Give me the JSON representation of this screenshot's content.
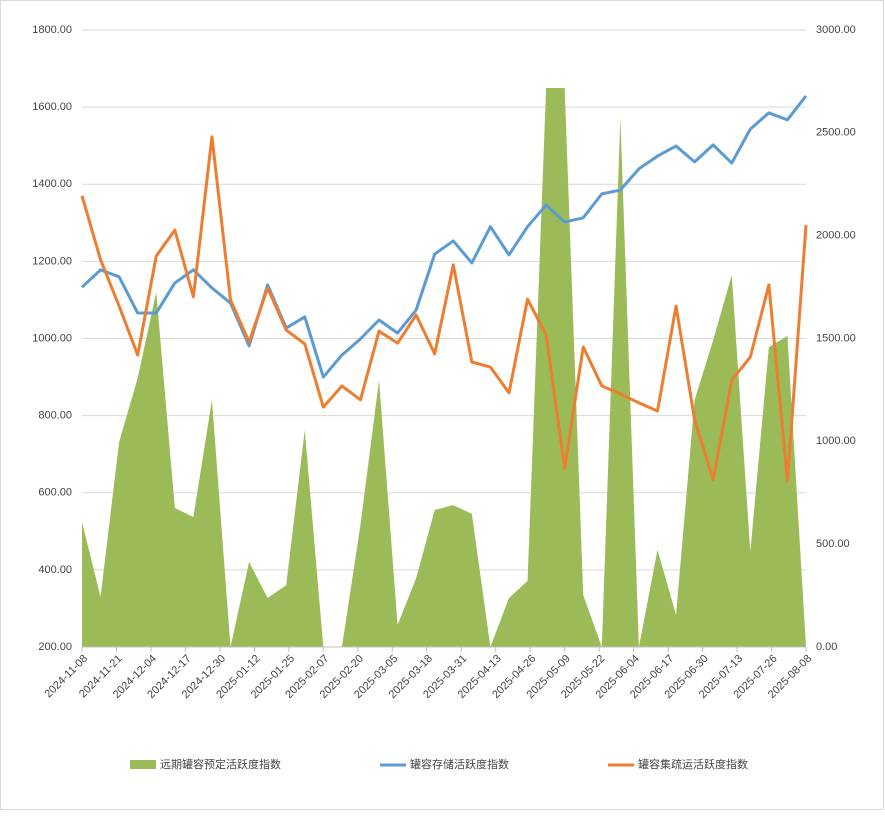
{
  "chart_data": {
    "type": "combo",
    "x": [
      "2024-11-08",
      "2024-11-15",
      "2024-11-22",
      "2024-11-29",
      "2024-12-06",
      "2024-12-13",
      "2024-12-20",
      "2024-12-27",
      "2025-01-03",
      "2025-01-10",
      "2025-01-17",
      "2025-01-24",
      "2025-01-31",
      "2025-02-07",
      "2025-02-14",
      "2025-02-21",
      "2025-02-28",
      "2025-03-07",
      "2025-03-14",
      "2025-03-21",
      "2025-03-28",
      "2025-04-04",
      "2025-04-11",
      "2025-04-18",
      "2025-04-25",
      "2025-05-02",
      "2025-05-09",
      "2025-05-16",
      "2025-05-23",
      "2025-05-30",
      "2025-06-06",
      "2025-06-13",
      "2025-06-20",
      "2025-06-27",
      "2025-07-04",
      "2025-07-11",
      "2025-07-18",
      "2025-07-25",
      "2025-08-01",
      "2025-08-08"
    ],
    "xticks": [
      "2024-11-08",
      "2024-11-21",
      "2024-12-04",
      "2024-12-17",
      "2024-12-30",
      "2025-01-12",
      "2025-01-25",
      "2025-02-07",
      "2025-02-20",
      "2025-03-05",
      "2025-03-18",
      "2025-03-31",
      "2025-04-13",
      "2025-04-26",
      "2025-05-09",
      "2025-05-22",
      "2025-06-04",
      "2025-06-17",
      "2025-06-30",
      "2025-07-13",
      "2025-07-26",
      "2025-08-08"
    ],
    "series": [
      {
        "name": "远期罐容预定活跃度指数",
        "kind": "area",
        "axis": "y2",
        "color": "#9bbb59",
        "values": [
          608,
          243,
          997,
          1308,
          1726,
          676,
          632,
          1201,
          0,
          413,
          238,
          301,
          1055,
          0,
          0,
          593,
          1298,
          107,
          335,
          666,
          690,
          647,
          0,
          238,
          321,
          2718,
          2718,
          253,
          0,
          2572,
          0,
          472,
          156,
          1201,
          1492,
          1808,
          462,
          1458,
          1512,
          0
        ]
      },
      {
        "name": "罐容存储活跃度指数",
        "kind": "line",
        "axis": "y",
        "color": "#5b9bd5",
        "values": [
          1133,
          1178,
          1160,
          1066,
          1066,
          1144,
          1178,
          1131,
          1092,
          981,
          1139,
          1027,
          1056,
          900,
          957,
          999,
          1048,
          1014,
          1074,
          1219,
          1253,
          1196,
          1290,
          1217,
          1290,
          1346,
          1302,
          1313,
          1375,
          1385,
          1440,
          1473,
          1499,
          1458,
          1502,
          1455,
          1543,
          1585,
          1567,
          1629
        ]
      },
      {
        "name": "罐容集疏运活跃度指数",
        "kind": "line",
        "axis": "y",
        "color": "#ed7d31",
        "values": [
          1370,
          1204,
          1084,
          957,
          1214,
          1281,
          1108,
          1523,
          1100,
          991,
          1131,
          1022,
          986,
          822,
          877,
          841,
          1019,
          988,
          1061,
          960,
          1191,
          939,
          926,
          859,
          1102,
          1009,
          664,
          978,
          877,
          856,
          833,
          812,
          1084,
          789,
          633,
          892,
          952,
          1139,
          630,
          1294
        ]
      }
    ],
    "ylim": [
      200,
      1800
    ],
    "yticks": [
      {
        "value": 200,
        "label": "200.00"
      },
      {
        "value": 400,
        "label": "400.00"
      },
      {
        "value": 600,
        "label": "600.00"
      },
      {
        "value": 800,
        "label": "800.00"
      },
      {
        "value": 1000,
        "label": "1000.00"
      },
      {
        "value": 1200,
        "label": "1200.00"
      },
      {
        "value": 1400,
        "label": "1400.00"
      },
      {
        "value": 1600,
        "label": "1600.00"
      },
      {
        "value": 1800,
        "label": "1800.00"
      }
    ],
    "y2lim": [
      0,
      3000
    ],
    "y2ticks": [
      {
        "value": 0,
        "label": "0.00"
      },
      {
        "value": 500,
        "label": "500.00"
      },
      {
        "value": 1000,
        "label": "1000.00"
      },
      {
        "value": 1500,
        "label": "1500.00"
      },
      {
        "value": 2000,
        "label": "2000.00"
      },
      {
        "value": 2500,
        "label": "2500.00"
      },
      {
        "value": 3000,
        "label": "3000.00"
      }
    ],
    "grid": true,
    "legend": "bottom"
  }
}
